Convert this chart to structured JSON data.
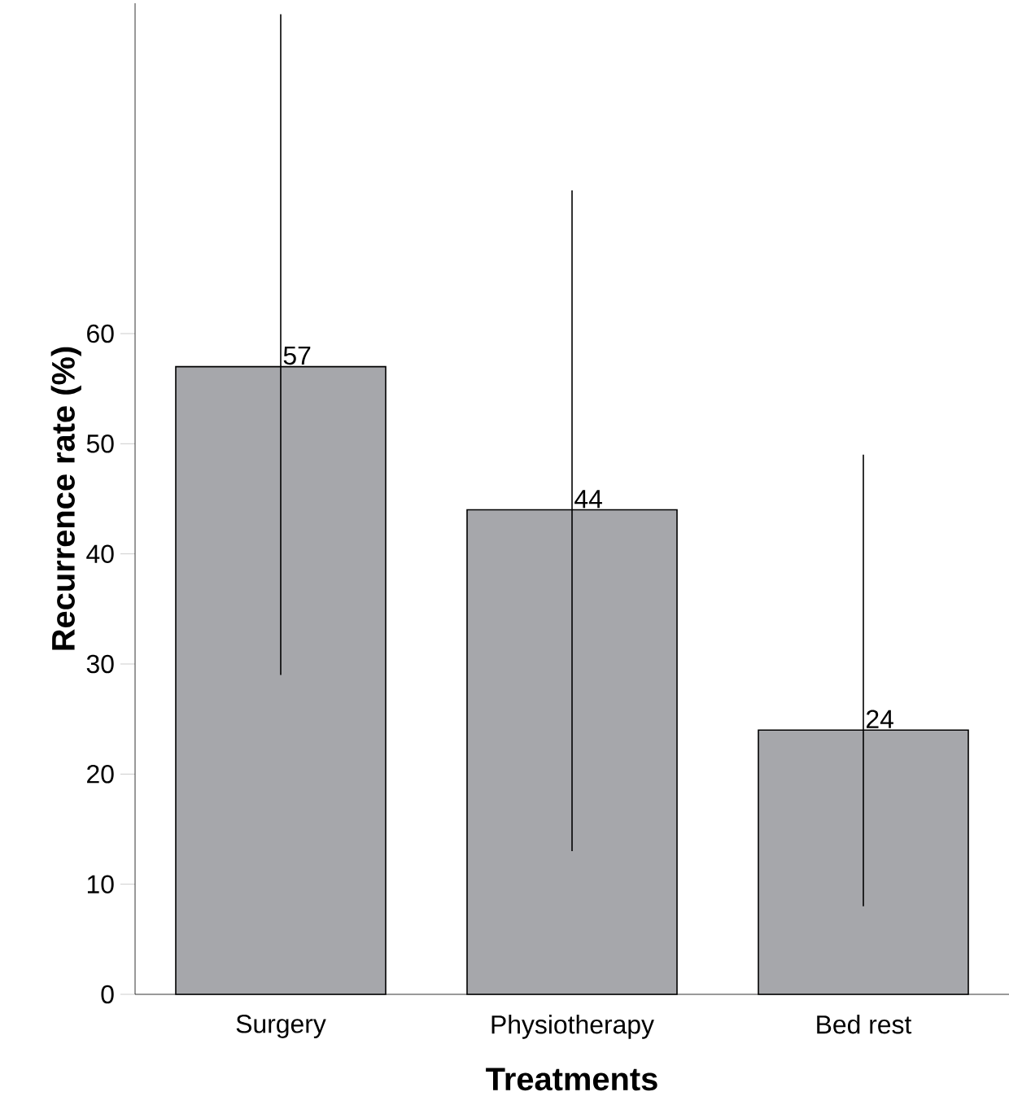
{
  "chart_data": {
    "type": "bar",
    "xlabel": "Treatments",
    "ylabel": "Recurrence rate (%)",
    "categories": [
      "Surgery",
      "Physiotherapy",
      "Bed rest"
    ],
    "values": [
      57,
      44,
      24
    ],
    "errors": [
      [
        29,
        89
      ],
      [
        13,
        73
      ],
      [
        8,
        49
      ]
    ],
    "color": "#a6a7ab",
    "ylim": [
      0,
      90
    ],
    "yticks": [
      0,
      10,
      20,
      30,
      40,
      50,
      60
    ],
    "grid": false,
    "data_labels": true
  }
}
